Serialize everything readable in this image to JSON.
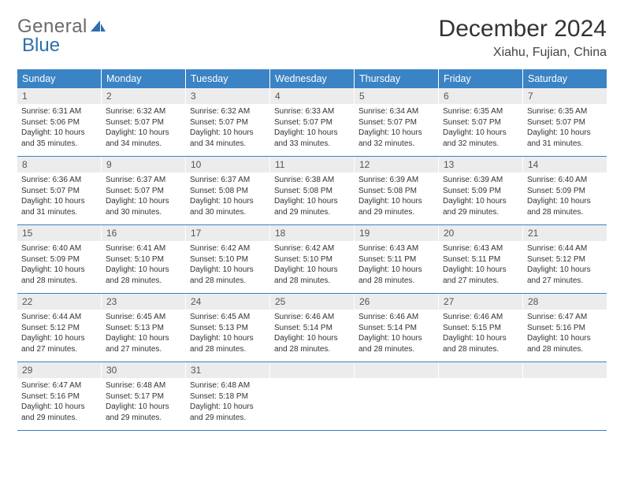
{
  "brand": {
    "part1": "General",
    "part2": "Blue"
  },
  "title": "December 2024",
  "location": "Xiahu, Fujian, China",
  "colors": {
    "header_bg": "#3a83c4",
    "header_text": "#ffffff",
    "daynum_bg": "#ececec",
    "row_border": "#3a83c4",
    "brand_blue": "#2f6fab",
    "brand_gray": "#6a6a6a"
  },
  "weekdays": [
    "Sunday",
    "Monday",
    "Tuesday",
    "Wednesday",
    "Thursday",
    "Friday",
    "Saturday"
  ],
  "days": [
    {
      "n": "1",
      "sr": "6:31 AM",
      "ss": "5:06 PM",
      "dl": "10 hours and 35 minutes."
    },
    {
      "n": "2",
      "sr": "6:32 AM",
      "ss": "5:07 PM",
      "dl": "10 hours and 34 minutes."
    },
    {
      "n": "3",
      "sr": "6:32 AM",
      "ss": "5:07 PM",
      "dl": "10 hours and 34 minutes."
    },
    {
      "n": "4",
      "sr": "6:33 AM",
      "ss": "5:07 PM",
      "dl": "10 hours and 33 minutes."
    },
    {
      "n": "5",
      "sr": "6:34 AM",
      "ss": "5:07 PM",
      "dl": "10 hours and 32 minutes."
    },
    {
      "n": "6",
      "sr": "6:35 AM",
      "ss": "5:07 PM",
      "dl": "10 hours and 32 minutes."
    },
    {
      "n": "7",
      "sr": "6:35 AM",
      "ss": "5:07 PM",
      "dl": "10 hours and 31 minutes."
    },
    {
      "n": "8",
      "sr": "6:36 AM",
      "ss": "5:07 PM",
      "dl": "10 hours and 31 minutes."
    },
    {
      "n": "9",
      "sr": "6:37 AM",
      "ss": "5:07 PM",
      "dl": "10 hours and 30 minutes."
    },
    {
      "n": "10",
      "sr": "6:37 AM",
      "ss": "5:08 PM",
      "dl": "10 hours and 30 minutes."
    },
    {
      "n": "11",
      "sr": "6:38 AM",
      "ss": "5:08 PM",
      "dl": "10 hours and 29 minutes."
    },
    {
      "n": "12",
      "sr": "6:39 AM",
      "ss": "5:08 PM",
      "dl": "10 hours and 29 minutes."
    },
    {
      "n": "13",
      "sr": "6:39 AM",
      "ss": "5:09 PM",
      "dl": "10 hours and 29 minutes."
    },
    {
      "n": "14",
      "sr": "6:40 AM",
      "ss": "5:09 PM",
      "dl": "10 hours and 28 minutes."
    },
    {
      "n": "15",
      "sr": "6:40 AM",
      "ss": "5:09 PM",
      "dl": "10 hours and 28 minutes."
    },
    {
      "n": "16",
      "sr": "6:41 AM",
      "ss": "5:10 PM",
      "dl": "10 hours and 28 minutes."
    },
    {
      "n": "17",
      "sr": "6:42 AM",
      "ss": "5:10 PM",
      "dl": "10 hours and 28 minutes."
    },
    {
      "n": "18",
      "sr": "6:42 AM",
      "ss": "5:10 PM",
      "dl": "10 hours and 28 minutes."
    },
    {
      "n": "19",
      "sr": "6:43 AM",
      "ss": "5:11 PM",
      "dl": "10 hours and 28 minutes."
    },
    {
      "n": "20",
      "sr": "6:43 AM",
      "ss": "5:11 PM",
      "dl": "10 hours and 27 minutes."
    },
    {
      "n": "21",
      "sr": "6:44 AM",
      "ss": "5:12 PM",
      "dl": "10 hours and 27 minutes."
    },
    {
      "n": "22",
      "sr": "6:44 AM",
      "ss": "5:12 PM",
      "dl": "10 hours and 27 minutes."
    },
    {
      "n": "23",
      "sr": "6:45 AM",
      "ss": "5:13 PM",
      "dl": "10 hours and 27 minutes."
    },
    {
      "n": "24",
      "sr": "6:45 AM",
      "ss": "5:13 PM",
      "dl": "10 hours and 28 minutes."
    },
    {
      "n": "25",
      "sr": "6:46 AM",
      "ss": "5:14 PM",
      "dl": "10 hours and 28 minutes."
    },
    {
      "n": "26",
      "sr": "6:46 AM",
      "ss": "5:14 PM",
      "dl": "10 hours and 28 minutes."
    },
    {
      "n": "27",
      "sr": "6:46 AM",
      "ss": "5:15 PM",
      "dl": "10 hours and 28 minutes."
    },
    {
      "n": "28",
      "sr": "6:47 AM",
      "ss": "5:16 PM",
      "dl": "10 hours and 28 minutes."
    },
    {
      "n": "29",
      "sr": "6:47 AM",
      "ss": "5:16 PM",
      "dl": "10 hours and 29 minutes."
    },
    {
      "n": "30",
      "sr": "6:48 AM",
      "ss": "5:17 PM",
      "dl": "10 hours and 29 minutes."
    },
    {
      "n": "31",
      "sr": "6:48 AM",
      "ss": "5:18 PM",
      "dl": "10 hours and 29 minutes."
    }
  ],
  "labels": {
    "sunrise": "Sunrise:",
    "sunset": "Sunset:",
    "daylight": "Daylight:"
  },
  "layout": {
    "start_weekday": 0,
    "num_days": 31,
    "cols": 7
  }
}
